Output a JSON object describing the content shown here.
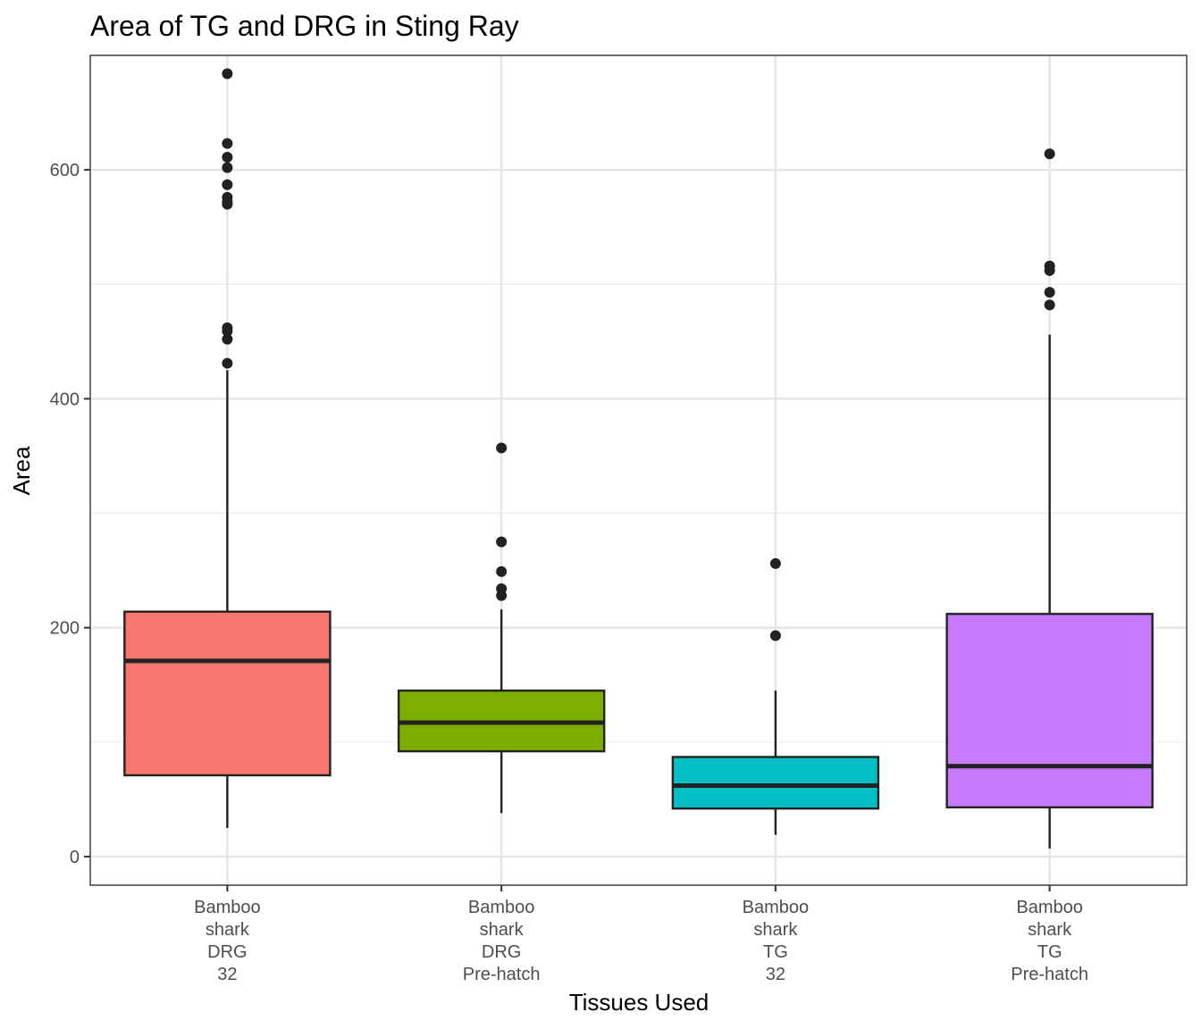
{
  "chart_data": {
    "type": "boxplot",
    "title": "Area of TG and DRG in Sting Ray",
    "xlabel": "Tissues Used",
    "ylabel": "Area",
    "ylim": [
      -25,
      700
    ],
    "yticks": [
      0,
      200,
      400,
      600
    ],
    "grid": true,
    "legend": "none",
    "categories": [
      {
        "label_lines": [
          "Bamboo",
          "shark",
          "DRG",
          "32"
        ],
        "color": "#F8766D",
        "min": 25,
        "q1": 71,
        "median": 171,
        "q3": 214,
        "max": 425,
        "outliers": [
          431,
          452,
          459,
          462,
          570,
          572,
          576,
          587,
          602,
          611,
          623,
          684
        ]
      },
      {
        "label_lines": [
          "Bamboo",
          "shark",
          "DRG",
          "Pre-hatch"
        ],
        "color": "#7CAE00",
        "min": 38,
        "q1": 92,
        "median": 117,
        "q3": 145,
        "max": 216,
        "outliers": [
          228,
          234,
          249,
          275,
          357
        ]
      },
      {
        "label_lines": [
          "Bamboo",
          "shark",
          "TG",
          "32"
        ],
        "color": "#00BFC4",
        "min": 19,
        "q1": 42,
        "median": 62,
        "q3": 87,
        "max": 145,
        "outliers": [
          193,
          256
        ]
      },
      {
        "label_lines": [
          "Bamboo",
          "shark",
          "TG",
          "Pre-hatch"
        ],
        "color": "#C77CFF",
        "min": 7,
        "q1": 43,
        "median": 79,
        "q3": 212,
        "max": 456,
        "outliers": [
          482,
          493,
          512,
          516,
          614
        ]
      }
    ]
  }
}
